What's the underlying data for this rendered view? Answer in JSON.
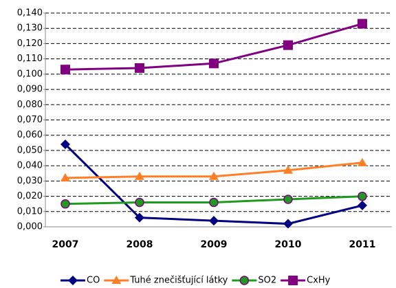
{
  "chart_data": {
    "type": "line",
    "categories": [
      "2007",
      "2008",
      "2009",
      "2010",
      "2011"
    ],
    "series": [
      {
        "name": "CO",
        "color": "#000080",
        "marker": "diamond",
        "values": [
          0.054,
          0.006,
          0.004,
          0.002,
          0.014
        ]
      },
      {
        "name": "Tuhé znečišťující látky",
        "color": "#ff7f27",
        "marker": "triangle",
        "values": [
          0.032,
          0.033,
          0.033,
          0.037,
          0.042
        ]
      },
      {
        "name": "SO2",
        "color": "#1f9a1f",
        "marker": "circle",
        "values": [
          0.015,
          0.016,
          0.016,
          0.018,
          0.02
        ]
      },
      {
        "name": "CxHy",
        "color": "#800080",
        "marker": "square",
        "values": [
          0.103,
          0.104,
          0.107,
          0.119,
          0.133
        ]
      }
    ],
    "ylim": [
      0,
      0.14
    ],
    "yticks": [
      {
        "value": 0,
        "label": "0,000"
      },
      {
        "value": 0.01,
        "label": "0,010"
      },
      {
        "value": 0.02,
        "label": "0,020"
      },
      {
        "value": 0.03,
        "label": "0,030"
      },
      {
        "value": 0.04,
        "label": "0,040"
      },
      {
        "value": 0.05,
        "label": "0,050"
      },
      {
        "value": 0.06,
        "label": "0,060"
      },
      {
        "value": 0.07,
        "label": "0,070"
      },
      {
        "value": 0.08,
        "label": "0,080"
      },
      {
        "value": 0.09,
        "label": "0,090"
      },
      {
        "value": 0.1,
        "label": "0,100"
      },
      {
        "value": 0.11,
        "label": "0,110"
      },
      {
        "value": 0.12,
        "label": "0,120"
      },
      {
        "value": 0.13,
        "label": "0,130"
      },
      {
        "value": 0.14,
        "label": "0,140"
      }
    ],
    "grid": true,
    "legend": "bottom"
  }
}
